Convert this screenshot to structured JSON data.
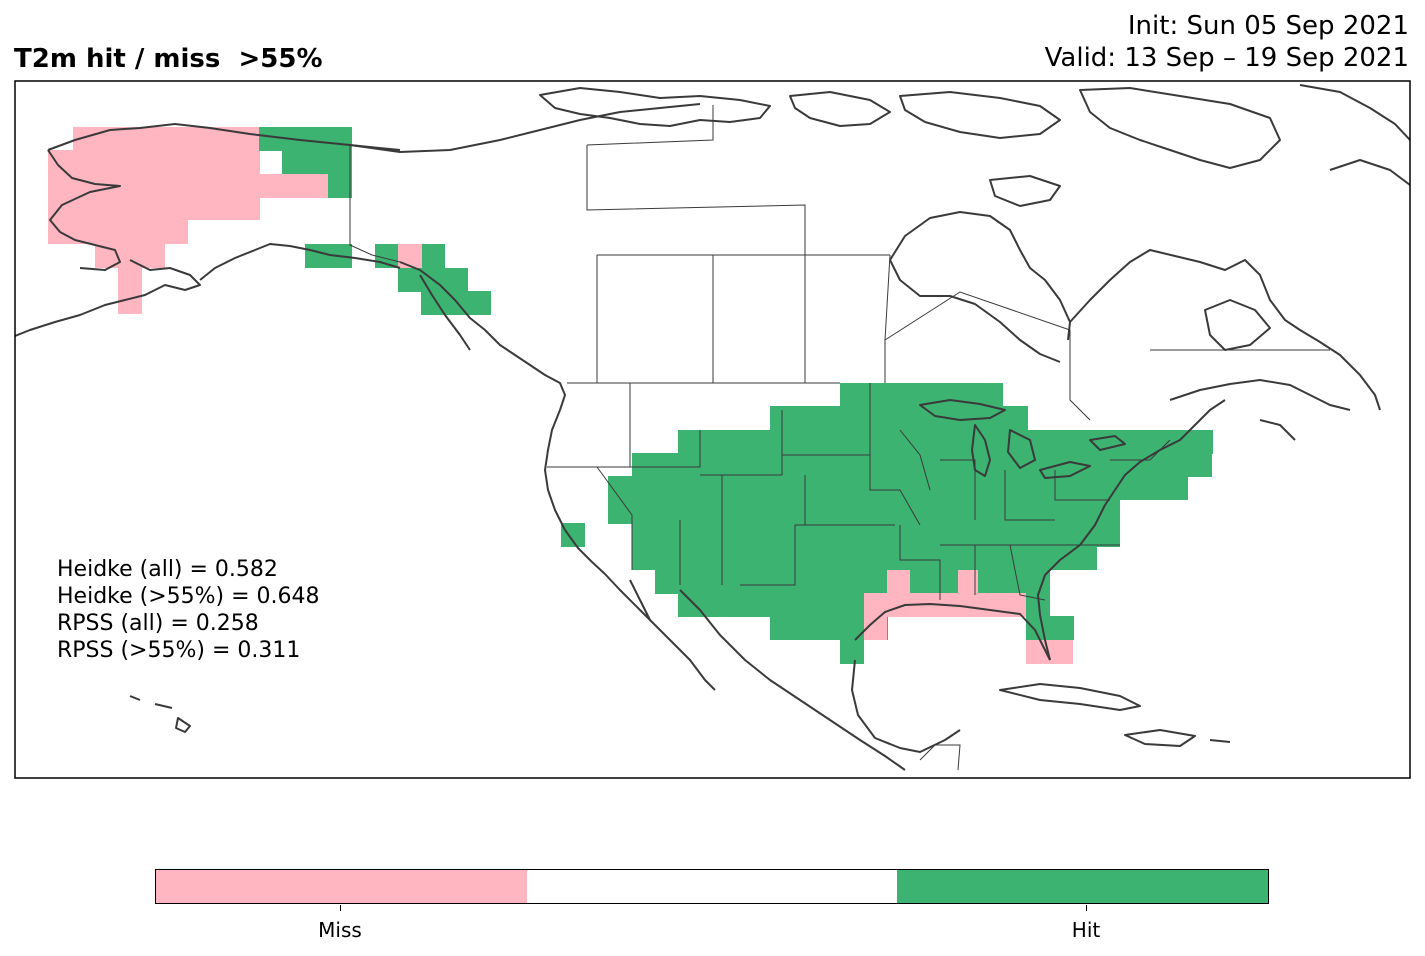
{
  "title": "T2m hit / miss  >55%",
  "init_line": "Init: Sun 05 Sep 2021",
  "valid_line": "Valid: 13 Sep – 19 Sep 2021",
  "stats": [
    "Heidke (all) = 0.582",
    "Heidke (>55%) = 0.648",
    "RPSS (all) = 0.258",
    "RPSS (>55%) = 0.311"
  ],
  "colorbar": {
    "segments": [
      {
        "label": "Miss",
        "color": "#ffb6c1"
      },
      {
        "label": "",
        "color": "#ffffff"
      },
      {
        "label": "Hit",
        "color": "#3cb371"
      }
    ]
  },
  "colors": {
    "hit": "#3cb371",
    "miss": "#ffb6c1",
    "coast": "#3a3a3a"
  }
}
